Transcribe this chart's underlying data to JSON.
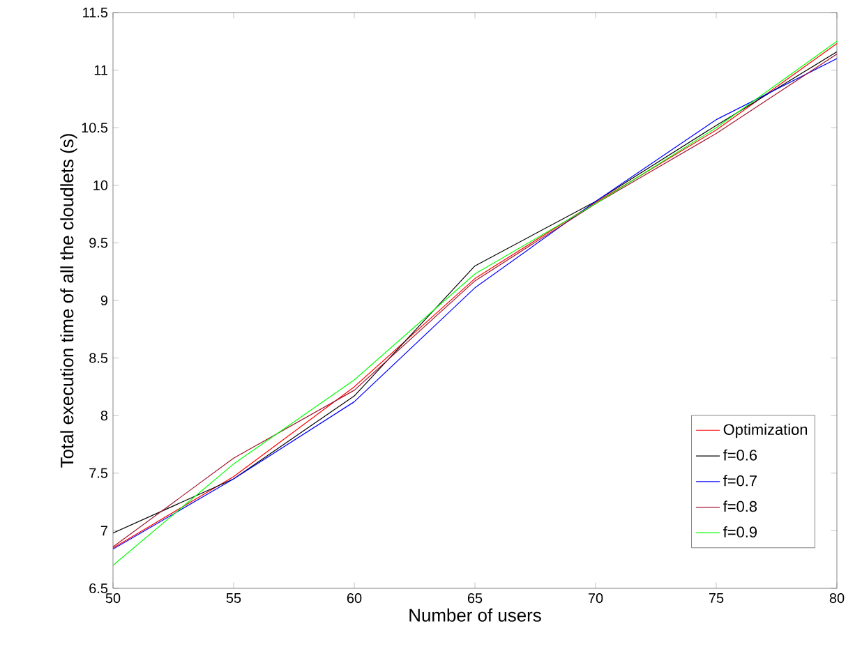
{
  "chart_data": {
    "type": "line",
    "xlabel": "Number of users",
    "ylabel": "Total execution time of all the cloudlets (s)",
    "x": [
      50,
      55,
      60,
      65,
      70,
      75,
      80
    ],
    "series": [
      {
        "name": "Optimization",
        "color": "#ff0000",
        "values": [
          6.85,
          7.47,
          8.25,
          9.19,
          9.85,
          10.48,
          11.23
        ]
      },
      {
        "name": "f=0.6",
        "color": "#000000",
        "values": [
          6.98,
          7.45,
          8.17,
          9.3,
          9.86,
          10.52,
          11.16
        ]
      },
      {
        "name": "f=0.7",
        "color": "#0000ff",
        "values": [
          6.84,
          7.45,
          8.12,
          9.11,
          9.86,
          10.57,
          11.1
        ]
      },
      {
        "name": "f=0.8",
        "color": "#a2142f",
        "values": [
          6.86,
          7.63,
          8.22,
          9.17,
          9.84,
          10.45,
          11.14
        ]
      },
      {
        "name": "f=0.9",
        "color": "#00ff00",
        "values": [
          6.7,
          7.58,
          8.31,
          9.23,
          9.84,
          10.5,
          11.25
        ]
      }
    ],
    "xlim": [
      50,
      80
    ],
    "ylim": [
      6.5,
      11.5
    ],
    "xticks": [
      50,
      55,
      60,
      65,
      70,
      75,
      80
    ],
    "yticks": [
      6.5,
      7,
      7.5,
      8,
      8.5,
      9,
      9.5,
      10,
      10.5,
      11,
      11.5
    ],
    "legend": "bottom right",
    "grid": false,
    "marker": "none",
    "line_style": "solid"
  }
}
